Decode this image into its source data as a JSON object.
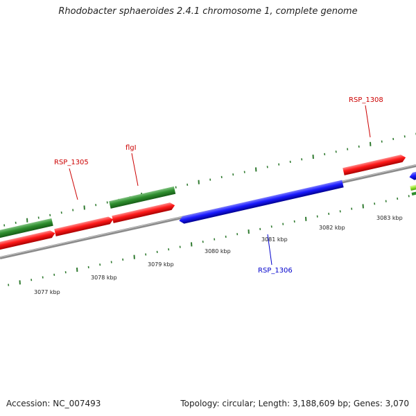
{
  "title": "Rhodobacter sphaeroides 2.4.1 chromosome 1, complete genome",
  "accession": "Accession: NC_007493",
  "summary": "Topology: circular; Length: 3,188,609 bp; Genes: 3,070",
  "colors": {
    "forward_cds": "#ff0000",
    "reverse_cds": "#0000ee",
    "rna_gene": "#2e8b2e",
    "backbone": "#8a8a8a",
    "tick": "#2f7a2f",
    "forward_label": "#cc0000",
    "reverse_label": "#0000cc"
  },
  "scale_labels": [
    "3077 kbp",
    "3078 kbp",
    "3079 kbp",
    "3080 kbp",
    "3081 kbp",
    "3082 kbp",
    "3083 kbp"
  ],
  "gene_labels": [
    {
      "text": "RSP_1305",
      "strand": "forward"
    },
    {
      "text": "flgI",
      "strand": "forward"
    },
    {
      "text": "RSP_1308",
      "strand": "forward"
    },
    {
      "text": "RSP_1306",
      "strand": "reverse"
    }
  ]
}
